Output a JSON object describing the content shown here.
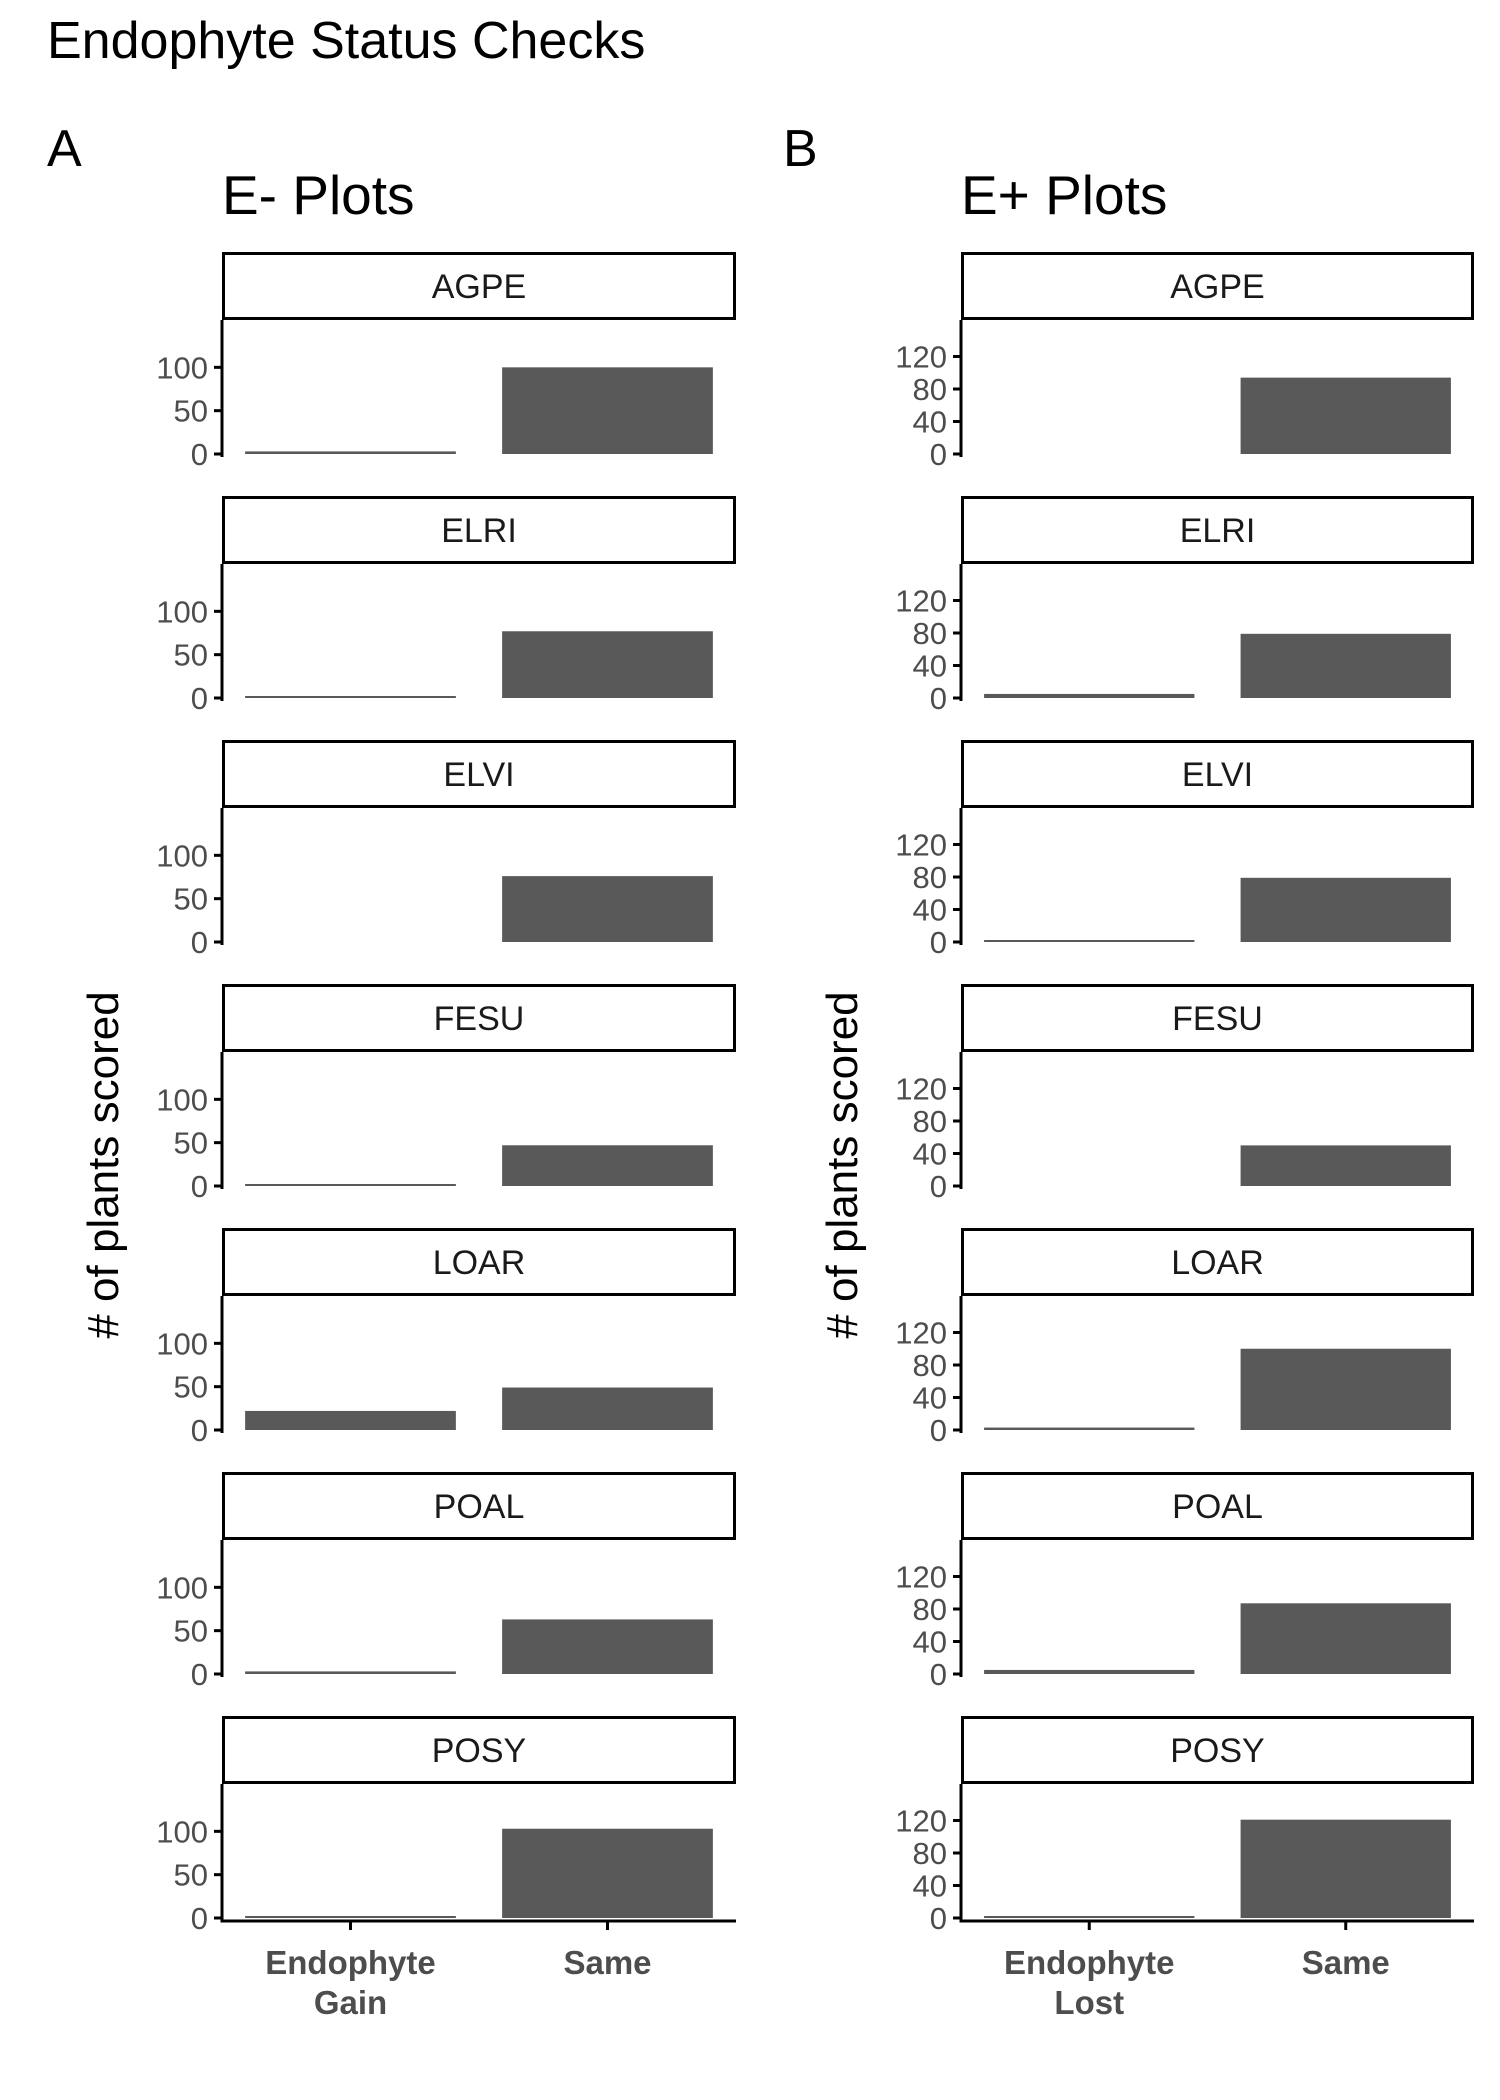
{
  "title": "Endophyte Status Checks",
  "colors": {
    "bar": "#595959",
    "axis": "#000000",
    "tick_text": "#4d4d4d",
    "strip_border": "#000000"
  },
  "chart_data": [
    {
      "type": "bar",
      "panel_tag": "A",
      "title": "E- Plots",
      "ylabel": "# of plants scored",
      "xlabel": "",
      "categories": [
        "Endophyte Gain",
        "Same"
      ],
      "category_labels": [
        [
          "Endophyte",
          "Gain"
        ],
        [
          "Same"
        ]
      ],
      "yticks": [
        0,
        50,
        100
      ],
      "ylim": [
        0,
        150
      ],
      "grid": false,
      "facets": [
        {
          "name": "AGPE",
          "values": [
            3,
            100
          ]
        },
        {
          "name": "ELRI",
          "values": [
            1,
            77
          ]
        },
        {
          "name": "ELVI",
          "values": [
            0,
            76
          ]
        },
        {
          "name": "FESU",
          "values": [
            1,
            47
          ]
        },
        {
          "name": "LOAR",
          "values": [
            22,
            49
          ]
        },
        {
          "name": "POAL",
          "values": [
            3,
            63
          ]
        },
        {
          "name": "POSY",
          "values": [
            1,
            103
          ]
        }
      ]
    },
    {
      "type": "bar",
      "panel_tag": "B",
      "title": "E+ Plots",
      "ylabel": "# of plants scored",
      "xlabel": "",
      "categories": [
        "Endophyte Lost",
        "Same"
      ],
      "category_labels": [
        [
          "Endophyte",
          "Lost"
        ],
        [
          "Same"
        ]
      ],
      "yticks": [
        0,
        40,
        80,
        120
      ],
      "ylim": [
        0,
        160
      ],
      "grid": false,
      "facets": [
        {
          "name": "AGPE",
          "values": [
            0,
            94
          ]
        },
        {
          "name": "ELRI",
          "values": [
            5,
            79
          ]
        },
        {
          "name": "ELVI",
          "values": [
            2,
            79
          ]
        },
        {
          "name": "FESU",
          "values": [
            0,
            50
          ]
        },
        {
          "name": "LOAR",
          "values": [
            3,
            100
          ]
        },
        {
          "name": "POAL",
          "values": [
            5,
            87
          ]
        },
        {
          "name": "POSY",
          "values": [
            1,
            121
          ]
        }
      ]
    }
  ]
}
